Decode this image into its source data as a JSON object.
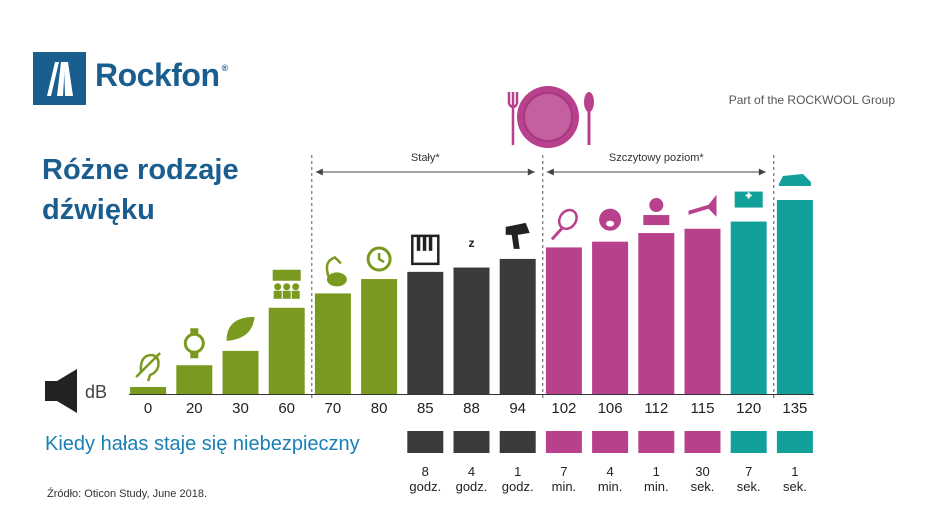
{
  "brand": {
    "name": "Rockfon",
    "registered": "®",
    "tagline": "Part of the ROCKWOOL Group",
    "color": "#1a5e8f"
  },
  "title_line1": "Różne rodzaje",
  "title_line2": "dźwięku",
  "danger_label": "Kiedy hałas staje się niebezpieczny",
  "source": "Źródło: Oticon Study, June 2018.",
  "db_unit": "dB",
  "colors": {
    "green": "#7a9a1f",
    "dark": "#3a3a3a",
    "magenta": "#b7418c",
    "teal": "#12a09a"
  },
  "chart_data": {
    "type": "bar",
    "ylabel": "dB",
    "ylim": [
      0,
      140
    ],
    "categories": [
      "0",
      "20",
      "30",
      "60",
      "70",
      "80",
      "85",
      "88",
      "94",
      "102",
      "106",
      "112",
      "115",
      "120",
      "135"
    ],
    "values": [
      0,
      20,
      30,
      60,
      70,
      80,
      85,
      88,
      94,
      102,
      106,
      112,
      115,
      120,
      135
    ],
    "groups": [
      "green",
      "green",
      "green",
      "green",
      "green",
      "green",
      "dark",
      "dark",
      "dark",
      "magenta",
      "magenta",
      "magenta",
      "magenta",
      "teal",
      "teal"
    ],
    "icons": [
      "hearing-icon",
      "watch-icon",
      "leaf-icon",
      "crowd-icon",
      "vacuum-cleaner-icon",
      "alarm-clock-icon",
      "piano-icon",
      "snore-icon",
      "hair-dryer-icon",
      "tennis-racket-icon",
      "crying-baby-icon",
      "dj-icon",
      "trumpet-icon",
      "ambulance-icon",
      "race-car-icon"
    ],
    "exposure_value": [
      "",
      "",
      "",
      "",
      "",
      "",
      "8",
      "4",
      "1",
      "7",
      "4",
      "1",
      "30",
      "7",
      "1"
    ],
    "exposure_unit": [
      "",
      "",
      "",
      "",
      "",
      "",
      "godz.",
      "godz.",
      "godz.",
      "min.",
      "min.",
      "min.",
      "sek.",
      "sek.",
      "sek."
    ],
    "annotations": [
      {
        "text": "Stały*",
        "from_index": 4,
        "to_index": 8
      },
      {
        "text": "Szczytowy poziom*",
        "from_index": 9,
        "to_index": 14
      }
    ]
  }
}
